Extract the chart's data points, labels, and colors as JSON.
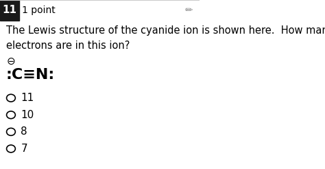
{
  "bg_color": "#ffffff",
  "header_box_color": "#1a1a1a",
  "header_num": "11",
  "header_num_color": "#ffffff",
  "header_points": "1 point",
  "question_text_line1": "The Lewis structure of the cyanide ion is shown here.  How many valence",
  "question_text_line2": "electrons are in this ion?",
  "lewis_label": ":C≡N:",
  "charge_symbol": "⊖",
  "choices": [
    "11",
    "10",
    "8",
    "7"
  ],
  "font_color": "#000000",
  "header_fontsize": 11,
  "question_fontsize": 10.5,
  "lewis_fontsize": 16,
  "choice_fontsize": 11
}
